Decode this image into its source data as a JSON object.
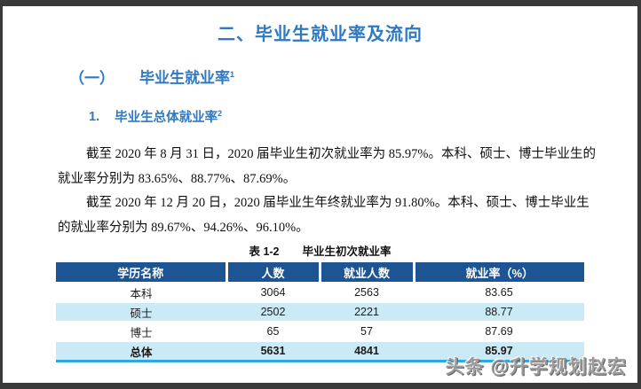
{
  "doc": {
    "title": "二、毕业生就业率及流向",
    "section": {
      "number": "（一）",
      "title": "毕业生就业率",
      "footnote": "1"
    },
    "sub": {
      "number": "1.",
      "title": "毕业生总体就业率",
      "footnote": "2"
    }
  },
  "paragraphs": [
    {
      "lines": [
        "截至 2020 年 8 月 31 日，2020 届毕业生初次就业率为 85.97%。本科、硕士、博士毕业生的",
        "就业率分别为 83.65%、88.77%、87.69%。"
      ]
    },
    {
      "lines": [
        "截至 2020 年 12 月 20 日，2020 届毕业生年终就业率为 91.80%。本科、硕士、博士毕业生",
        "的就业率分别为 89.67%、94.26%、96.10%。"
      ]
    }
  ],
  "table": {
    "caption_label": "表 1-2",
    "caption_title": "毕业生初次就业率",
    "headers": [
      "学历名称",
      "人数",
      "就业人数",
      "就业率（%）"
    ],
    "rows": [
      {
        "cells": [
          "本科",
          "3064",
          "2563",
          "83.65"
        ]
      },
      {
        "cells": [
          "硕士",
          "2502",
          "2221",
          "88.77"
        ]
      },
      {
        "cells": [
          "博士",
          "65",
          "57",
          "87.69"
        ]
      },
      {
        "cells": [
          "总体",
          "5631",
          "4841",
          "85.97"
        ]
      }
    ]
  },
  "watermark": "头条 @升学规划赵宏",
  "colors": {
    "heading_blue": "#2e79c2",
    "table_header_bg": "#1d5493",
    "row_highlight": "#cbeaf5",
    "table_bottom_border": "#2fa8df",
    "page_border": "#3a3a3a",
    "watermark_gray": "#9b9b9b"
  }
}
